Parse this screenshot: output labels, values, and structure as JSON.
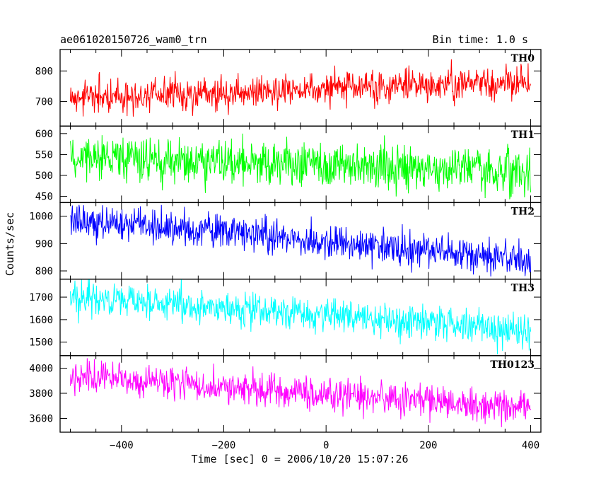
{
  "chart_data": {
    "type": "line",
    "title": "ae061020150726_wam0_trn",
    "subtitle": "Bin time: 1.0 s",
    "xlabel": "Time [sec] 0 = 2006/10/20 15:07:26",
    "ylabel": "Counts/sec",
    "xlim": [
      -520,
      420
    ],
    "x_ticks": [
      -400,
      -200,
      0,
      200,
      400
    ],
    "x_range": [
      -500,
      400
    ],
    "panels": [
      {
        "name": "TH0",
        "color": "#ff0000",
        "ylim": [
          620,
          870
        ],
        "y_ticks": [
          700,
          800
        ],
        "trend_start": 712,
        "trend_end": 765,
        "noise_sd": 28
      },
      {
        "name": "TH1",
        "color": "#00ff00",
        "ylim": [
          435,
          618
        ],
        "y_ticks": [
          450,
          500,
          550,
          600
        ],
        "trend_start": 545,
        "trend_end": 508,
        "noise_sd": 27
      },
      {
        "name": "TH2",
        "color": "#0000ff",
        "ylim": [
          770,
          1050
        ],
        "y_ticks": [
          800,
          900,
          1000
        ],
        "trend_start": 990,
        "trend_end": 840,
        "noise_sd": 32
      },
      {
        "name": "TH3",
        "color": "#00ffff",
        "ylim": [
          1440,
          1780
        ],
        "y_ticks": [
          1500,
          1600,
          1700
        ],
        "trend_start": 1700,
        "trend_end": 1550,
        "noise_sd": 40
      },
      {
        "name": "TH0123",
        "color": "#ff00ff",
        "ylim": [
          3490,
          4100
        ],
        "y_ticks": [
          3600,
          3800,
          4000
        ],
        "trend_start": 3935,
        "trend_end": 3680,
        "noise_sd": 65
      }
    ]
  }
}
